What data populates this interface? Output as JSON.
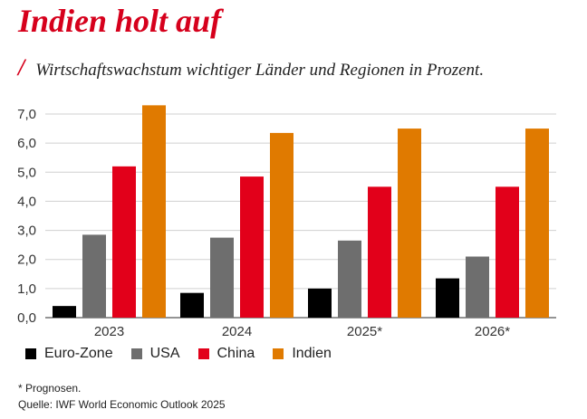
{
  "header": {
    "title": "Indien holt auf",
    "slash": "/",
    "subtitle": "Wirtschaftswachstum wichtiger Länder und Regionen in Prozent."
  },
  "chart_data": {
    "type": "bar",
    "categories": [
      "2023",
      "2024",
      "2025*",
      "2026*"
    ],
    "series": [
      {
        "name": "Euro-Zone",
        "color": "#000000",
        "values": [
          0.4,
          0.85,
          1.0,
          1.35
        ]
      },
      {
        "name": "USA",
        "color": "#6e6e6e",
        "values": [
          2.85,
          2.75,
          2.65,
          2.1
        ]
      },
      {
        "name": "China",
        "color": "#e2001a",
        "values": [
          5.2,
          4.85,
          4.5,
          4.5
        ]
      },
      {
        "name": "Indien",
        "color": "#e07a00",
        "values": [
          7.3,
          6.35,
          6.5,
          6.5
        ]
      }
    ],
    "yticks": [
      "0,0",
      "1,0",
      "2,0",
      "3,0",
      "4,0",
      "5,0",
      "6,0",
      "7,0"
    ],
    "ylim": [
      0,
      7
    ],
    "grid": true,
    "legend_position": "bottom"
  },
  "footnote": "* Prognosen.",
  "source": "Quelle: IWF World Economic Outlook 2025"
}
